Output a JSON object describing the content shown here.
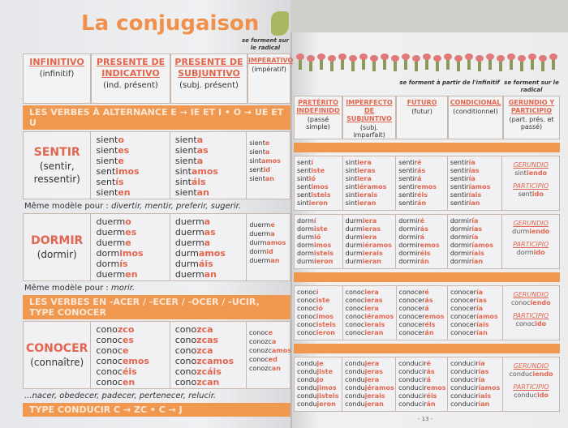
{
  "title": "La conjugaison",
  "left_headers": [
    {
      "h": "INFINITIVO",
      "s": "(infinitif)"
    },
    {
      "h": "PRESENTE DE INDICATIVO",
      "s": "(ind. présent)"
    },
    {
      "h": "PRESENTE DE SUBJUNTIVO",
      "s": "(subj. présent)"
    },
    {
      "h": "IMPERATIVO",
      "s": "(impératif)"
    }
  ],
  "right_headers": [
    {
      "h": "PRETÉRITO INDEFINIDO",
      "s": "(passé simple)"
    },
    {
      "h": "IMPERFECTO DE SUBJUNTIVO",
      "s": "(subj. imparfait)"
    },
    {
      "h": "FUTURO",
      "s": "(futur)"
    },
    {
      "h": "CONDICIONAL",
      "s": "(conditionnel)"
    },
    {
      "h": "GERUNDIO Y PARTICIPIO",
      "s": "(part. prés. et passé)"
    }
  ],
  "left_note_top": "se forment sur le radical",
  "right_note_infinitive": "se forment à partir de l'infinitif",
  "right_note_radical": "se forment sur le radical",
  "bands": [
    "LES VERBES À ALTERNANCE E → IE ET I • O → UE ET U",
    "LES VERBES EN -ACER / -ECER / -OCER / -UCIR, TYPE CONOCER",
    "TYPE CONDUCIR C → ZC • C → J"
  ],
  "notes": [
    {
      "label": "Même modèle pour : ",
      "verbs": "divertir, mentir, preferir, sugerir."
    },
    {
      "label": "Même modèle pour : ",
      "verbs": "morir."
    },
    {
      "label": "",
      "verbs": "...nacer, obedecer, padecer, pertenecer, relucir."
    }
  ],
  "gerundio_label": "GERUNDIO",
  "participio_label": "PARTICIPIO",
  "page_number": "- 13 -",
  "verbs": [
    {
      "name": "SENTIR",
      "translation": "(sentir, ressentir)",
      "pres_ind": [
        [
          "sient",
          "o"
        ],
        [
          "sient",
          "es"
        ],
        [
          "sient",
          "e"
        ],
        [
          "sent",
          "imos"
        ],
        [
          "sent",
          "ís"
        ],
        [
          "sient",
          "en"
        ]
      ],
      "pres_subj": [
        [
          "sient",
          "a"
        ],
        [
          "sient",
          "as"
        ],
        [
          "sient",
          "a"
        ],
        [
          "sint",
          "amos"
        ],
        [
          "sint",
          "áis"
        ],
        [
          "sient",
          "an"
        ]
      ],
      "imperativo": [
        [
          "sient",
          "e"
        ],
        [
          "sient",
          "a"
        ],
        [
          "sint",
          "amos"
        ],
        [
          "sent",
          "id"
        ],
        [
          "sient",
          "an"
        ]
      ],
      "preterito": [
        [
          "sent",
          "í"
        ],
        [
          "sent",
          "iste"
        ],
        [
          "sint",
          "ió"
        ],
        [
          "sent",
          "imos"
        ],
        [
          "sent",
          "isteis"
        ],
        [
          "sint",
          "ieron"
        ]
      ],
      "imperfecto": [
        [
          "sint",
          "iera"
        ],
        [
          "sint",
          "ieras"
        ],
        [
          "sint",
          "iera"
        ],
        [
          "sint",
          "iéramos"
        ],
        [
          "sint",
          "ierais"
        ],
        [
          "sint",
          "ieran"
        ]
      ],
      "futuro": [
        [
          "sentir",
          "é"
        ],
        [
          "sentir",
          "ás"
        ],
        [
          "sentir",
          "á"
        ],
        [
          "sentir",
          "emos"
        ],
        [
          "sentir",
          "éis"
        ],
        [
          "sentir",
          "án"
        ]
      ],
      "condicional": [
        [
          "sentir",
          "ía"
        ],
        [
          "sentir",
          "ías"
        ],
        [
          "sentir",
          "ía"
        ],
        [
          "sentir",
          "íamos"
        ],
        [
          "sentir",
          "íais"
        ],
        [
          "sentir",
          "ían"
        ]
      ],
      "gerundio": [
        "sint",
        "iendo"
      ],
      "participio": [
        "sent",
        "ido"
      ]
    },
    {
      "name": "DORMIR",
      "translation": "(dormir)",
      "pres_ind": [
        [
          "duerm",
          "o"
        ],
        [
          "duerm",
          "es"
        ],
        [
          "duerm",
          "e"
        ],
        [
          "dorm",
          "imos"
        ],
        [
          "dorm",
          "ís"
        ],
        [
          "duerm",
          "en"
        ]
      ],
      "pres_subj": [
        [
          "duerm",
          "a"
        ],
        [
          "duerm",
          "as"
        ],
        [
          "duerm",
          "a"
        ],
        [
          "durm",
          "amos"
        ],
        [
          "durm",
          "áis"
        ],
        [
          "duerm",
          "an"
        ]
      ],
      "imperativo": [
        [
          "duerm",
          "e"
        ],
        [
          "duerm",
          "a"
        ],
        [
          "durm",
          "amos"
        ],
        [
          "dorm",
          "id"
        ],
        [
          "duerm",
          "an"
        ]
      ],
      "preterito": [
        [
          "dorm",
          "í"
        ],
        [
          "dorm",
          "iste"
        ],
        [
          "durm",
          "ió"
        ],
        [
          "dorm",
          "imos"
        ],
        [
          "dorm",
          "isteis"
        ],
        [
          "durm",
          "ieron"
        ]
      ],
      "imperfecto": [
        [
          "durm",
          "iera"
        ],
        [
          "durm",
          "ieras"
        ],
        [
          "durm",
          "iera"
        ],
        [
          "durm",
          "iéramos"
        ],
        [
          "durm",
          "ierais"
        ],
        [
          "durm",
          "ieran"
        ]
      ],
      "futuro": [
        [
          "dormir",
          "é"
        ],
        [
          "dormir",
          "ás"
        ],
        [
          "dormir",
          "á"
        ],
        [
          "dormir",
          "emos"
        ],
        [
          "dormir",
          "éis"
        ],
        [
          "dormir",
          "án"
        ]
      ],
      "condicional": [
        [
          "dormir",
          "ía"
        ],
        [
          "dormir",
          "ías"
        ],
        [
          "dormir",
          "ía"
        ],
        [
          "dormir",
          "íamos"
        ],
        [
          "dormir",
          "íais"
        ],
        [
          "dormir",
          "ían"
        ]
      ],
      "gerundio": [
        "durm",
        "iendo"
      ],
      "participio": [
        "dorm",
        "ido"
      ]
    },
    {
      "name": "CONOCER",
      "translation": "(connaître)",
      "pres_ind": [
        [
          "cono",
          "zco"
        ],
        [
          "conoc",
          "es"
        ],
        [
          "conoc",
          "e"
        ],
        [
          "conoc",
          "emos"
        ],
        [
          "conoc",
          "éis"
        ],
        [
          "conoc",
          "en"
        ]
      ],
      "pres_subj": [
        [
          "cono",
          "zca"
        ],
        [
          "cono",
          "zcas"
        ],
        [
          "cono",
          "zca"
        ],
        [
          "cono",
          "zcamos"
        ],
        [
          "cono",
          "zcáis"
        ],
        [
          "cono",
          "zcan"
        ]
      ],
      "imperativo": [
        [
          "conoc",
          "e"
        ],
        [
          "conozc",
          "a"
        ],
        [
          "conozc",
          "amos"
        ],
        [
          "conoc",
          "ed"
        ],
        [
          "conozc",
          "an"
        ]
      ],
      "preterito": [
        [
          "conoc",
          "í"
        ],
        [
          "conoc",
          "iste"
        ],
        [
          "conoc",
          "ió"
        ],
        [
          "conoc",
          "imos"
        ],
        [
          "conoc",
          "isteis"
        ],
        [
          "conoc",
          "ieron"
        ]
      ],
      "imperfecto": [
        [
          "conoc",
          "iera"
        ],
        [
          "conoc",
          "ieras"
        ],
        [
          "conoc",
          "iera"
        ],
        [
          "conoc",
          "iéramos"
        ],
        [
          "conoc",
          "ierais"
        ],
        [
          "conoc",
          "ieran"
        ]
      ],
      "futuro": [
        [
          "conocer",
          "é"
        ],
        [
          "conocer",
          "ás"
        ],
        [
          "conocer",
          "á"
        ],
        [
          "conocer",
          "emos"
        ],
        [
          "conocer",
          "éis"
        ],
        [
          "conocer",
          "án"
        ]
      ],
      "condicional": [
        [
          "conocer",
          "ía"
        ],
        [
          "conocer",
          "ías"
        ],
        [
          "conocer",
          "ía"
        ],
        [
          "conocer",
          "íamos"
        ],
        [
          "conocer",
          "íais"
        ],
        [
          "conocer",
          "ían"
        ]
      ],
      "gerundio": [
        "conoc",
        "iendo"
      ],
      "participio": [
        "conoc",
        "ido"
      ]
    },
    {
      "name": "",
      "translation": "",
      "pres_ind": [],
      "pres_subj": [],
      "imperativo": [
        [
          "conduc",
          "e"
        ],
        [
          "conduzc",
          "a"
        ],
        [
          "conduzc",
          "amos"
        ]
      ],
      "preterito": [
        [
          "condu",
          "je"
        ],
        [
          "condu",
          "jiste"
        ],
        [
          "condu",
          "jo"
        ],
        [
          "condu",
          "jimos"
        ],
        [
          "condu",
          "jisteis"
        ],
        [
          "condu",
          "jeron"
        ]
      ],
      "imperfecto": [
        [
          "condu",
          "jera"
        ],
        [
          "condu",
          "jeras"
        ],
        [
          "condu",
          "jera"
        ],
        [
          "condu",
          "jéramos"
        ],
        [
          "condu",
          "jerais"
        ],
        [
          "condu",
          "jeran"
        ]
      ],
      "futuro": [
        [
          "conducir",
          "é"
        ],
        [
          "conducir",
          "ás"
        ],
        [
          "conducir",
          "á"
        ],
        [
          "conducir",
          "emos"
        ],
        [
          "conducir",
          "éis"
        ],
        [
          "conducir",
          "án"
        ]
      ],
      "condicional": [
        [
          "conducir",
          "ía"
        ],
        [
          "conducir",
          "ías"
        ],
        [
          "conducir",
          "ía"
        ],
        [
          "conducir",
          "íamos"
        ],
        [
          "conducir",
          "íais"
        ],
        [
          "conducir",
          "ían"
        ]
      ],
      "gerundio": [
        "conduc",
        "iendo"
      ],
      "participio": [
        "conduc",
        "ido"
      ]
    }
  ],
  "colors": {
    "accent": "#f0984f",
    "ending": "#e0664f",
    "title": "#f0904a"
  }
}
